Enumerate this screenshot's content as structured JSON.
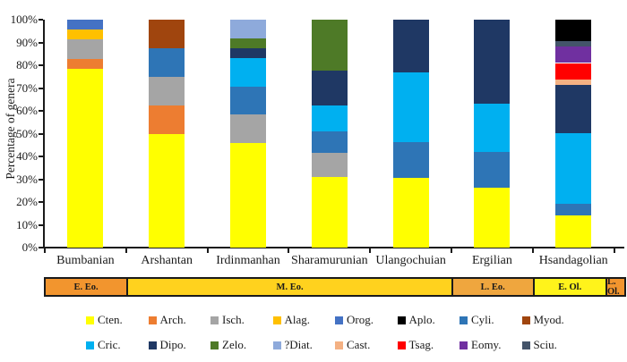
{
  "y_axis": {
    "title": "Percentage of genera",
    "tick_labels": [
      "0%",
      "10%",
      "20%",
      "30%",
      "40%",
      "50%",
      "60%",
      "70%",
      "80%",
      "90%",
      "100%"
    ]
  },
  "chart_data": {
    "type": "bar",
    "stacked": true,
    "ylabel": "Percentage of genera",
    "ylim": [
      0,
      100
    ],
    "grid": "off",
    "categories": [
      "Bumbanian",
      "Arshantan",
      "Irdinmanhan",
      "Sharamurunian",
      "Ulangochuian",
      "Ergilian",
      "Hsandagolian"
    ],
    "taxa": [
      {
        "name": "Cten.",
        "color": "#FFFF00"
      },
      {
        "name": "Arch.",
        "color": "#ED7D31"
      },
      {
        "name": "Isch.",
        "color": "#A5A5A5"
      },
      {
        "name": "Alag.",
        "color": "#FFC000"
      },
      {
        "name": "Orog.",
        "color": "#4472C4"
      },
      {
        "name": "Aplo.",
        "color": "#000000"
      },
      {
        "name": "Cyli.",
        "color": "#2E75B6"
      },
      {
        "name": "Myod.",
        "color": "#A0450E"
      },
      {
        "name": "Cric.",
        "color": "#00B0F0"
      },
      {
        "name": "Dipo.",
        "color": "#1F3864"
      },
      {
        "name": "Zelo.",
        "color": "#4E7A27"
      },
      {
        "name": "?Diat.",
        "color": "#8EAADB"
      },
      {
        "name": "Cast.",
        "color": "#F4B183"
      },
      {
        "name": "Tsag.",
        "color": "#FF0000"
      },
      {
        "name": "Eomy.",
        "color": "#7030A0"
      },
      {
        "name": "Sciu.",
        "color": "#44546A"
      }
    ],
    "series_by_category": {
      "Bumbanian": [
        {
          "taxon": "Cten.",
          "value": 78.3
        },
        {
          "taxon": "Arch.",
          "value": 4.3
        },
        {
          "taxon": "Isch.",
          "value": 8.7
        },
        {
          "taxon": "Alag.",
          "value": 4.4
        },
        {
          "taxon": "Orog.",
          "value": 4.3
        }
      ],
      "Arshantan": [
        {
          "taxon": "Cten.",
          "value": 50.0
        },
        {
          "taxon": "Arch.",
          "value": 12.5
        },
        {
          "taxon": "Isch.",
          "value": 12.5
        },
        {
          "taxon": "Cyli.",
          "value": 12.5
        },
        {
          "taxon": "Myod.",
          "value": 12.5
        }
      ],
      "Irdinmanhan": [
        {
          "taxon": "Cten.",
          "value": 45.8
        },
        {
          "taxon": "Isch.",
          "value": 12.5
        },
        {
          "taxon": "Cyli.",
          "value": 12.5
        },
        {
          "taxon": "Cric.",
          "value": 12.5
        },
        {
          "taxon": "Dipo.",
          "value": 4.2
        },
        {
          "taxon": "Zelo.",
          "value": 4.2
        },
        {
          "taxon": "?Diat.",
          "value": 8.3
        }
      ],
      "Sharamurunian": [
        {
          "taxon": "Cten.",
          "value": 31.0
        },
        {
          "taxon": "Isch.",
          "value": 10.5
        },
        {
          "taxon": "Cyli.",
          "value": 9.5
        },
        {
          "taxon": "Cric.",
          "value": 11.5
        },
        {
          "taxon": "Dipo.",
          "value": 15.0
        },
        {
          "taxon": "Zelo.",
          "value": 22.5
        }
      ],
      "Ulangochuian": [
        {
          "taxon": "Cten.",
          "value": 30.8
        },
        {
          "taxon": "Cyli.",
          "value": 15.4
        },
        {
          "taxon": "Cric.",
          "value": 30.8
        },
        {
          "taxon": "Dipo.",
          "value": 23.0
        }
      ],
      "Ergilian": [
        {
          "taxon": "Cten.",
          "value": 26.3
        },
        {
          "taxon": "Cyli.",
          "value": 15.8
        },
        {
          "taxon": "Cric.",
          "value": 21.1
        },
        {
          "taxon": "Dipo.",
          "value": 36.8
        }
      ],
      "Hsandagolian": [
        {
          "taxon": "Cten.",
          "value": 14.3
        },
        {
          "taxon": "Cyli.",
          "value": 4.8
        },
        {
          "taxon": "Cric.",
          "value": 31.0
        },
        {
          "taxon": "Dipo.",
          "value": 21.4
        },
        {
          "taxon": "Cast.",
          "value": 2.4
        },
        {
          "taxon": "Tsag.",
          "value": 7.1
        },
        {
          "taxon": "Eomy.",
          "value": 7.1
        },
        {
          "taxon": "Sciu.",
          "value": 2.4
        },
        {
          "taxon": "Aplo.",
          "value": 9.5
        }
      ]
    }
  },
  "epoch_bar": {
    "segments": [
      {
        "label": "E. Eo.",
        "color": "#F2952E",
        "width_pct": 13.97
      },
      {
        "label": "M. Eo.",
        "color": "#FFD21E",
        "width_pct": 56.14
      },
      {
        "label": "L. Eo.",
        "color": "#EFA63E",
        "width_pct": 14.03
      },
      {
        "label": "E. Ol.",
        "color": "#FFF31B",
        "width_pct": 12.61
      },
      {
        "label": "L. Ol.",
        "color": "#F2952E",
        "width_pct": 3.25
      }
    ]
  },
  "legend": {
    "rows": [
      [
        "Cten.",
        "Arch.",
        "Isch.",
        "Alag.",
        "Orog.",
        "Aplo.",
        "Cyli.",
        "Myod."
      ],
      [
        "Cric.",
        "Dipo.",
        "Zelo.",
        "?Diat.",
        "Cast.",
        "Tsag.",
        "Eomy.",
        "Sciu."
      ]
    ]
  }
}
